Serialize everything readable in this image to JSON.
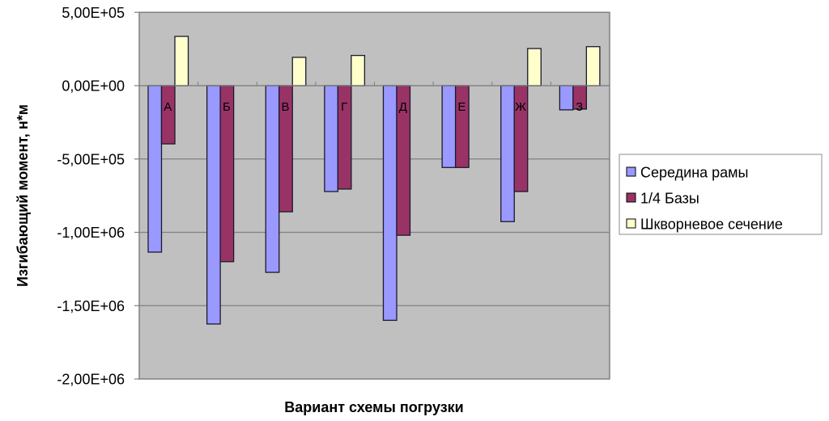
{
  "chart_data": {
    "type": "bar",
    "title": "",
    "xlabel": "Вариант схемы погрузки",
    "ylabel": "Изгибающий момент, н*м",
    "categories": [
      "А",
      "Б",
      "В",
      "Г",
      "Д",
      "Е",
      "Ж",
      "З"
    ],
    "series": [
      {
        "name": "Середина рамы",
        "color": "#9999ff",
        "values": [
          -1135000,
          -1625000,
          -1273000,
          -722000,
          -1600000,
          -558000,
          -927000,
          -165000
        ]
      },
      {
        "name": "1/4 Базы",
        "color": "#993366",
        "values": [
          -397000,
          -1200000,
          -860000,
          -705000,
          -1020000,
          -558000,
          -722000,
          -160000
        ]
      },
      {
        "name": "Шкворневое сечение",
        "color": "#ffffcc",
        "values": [
          336000,
          0,
          193000,
          206000,
          0,
          0,
          253000,
          266000
        ]
      }
    ],
    "ylim": [
      -2000000,
      500000
    ],
    "yticks": [
      500000,
      0,
      -500000,
      -1000000,
      -1500000,
      -2000000
    ],
    "ytick_labels": [
      "5,00E+05",
      "0,00E+00",
      "-5,00E+05",
      "-1,00E+06",
      "-1,50E+06",
      "-2,00E+06"
    ],
    "grid": true,
    "legend_position": "right",
    "plot_background": "#c0c0c0",
    "gridline_color": "#808080"
  }
}
